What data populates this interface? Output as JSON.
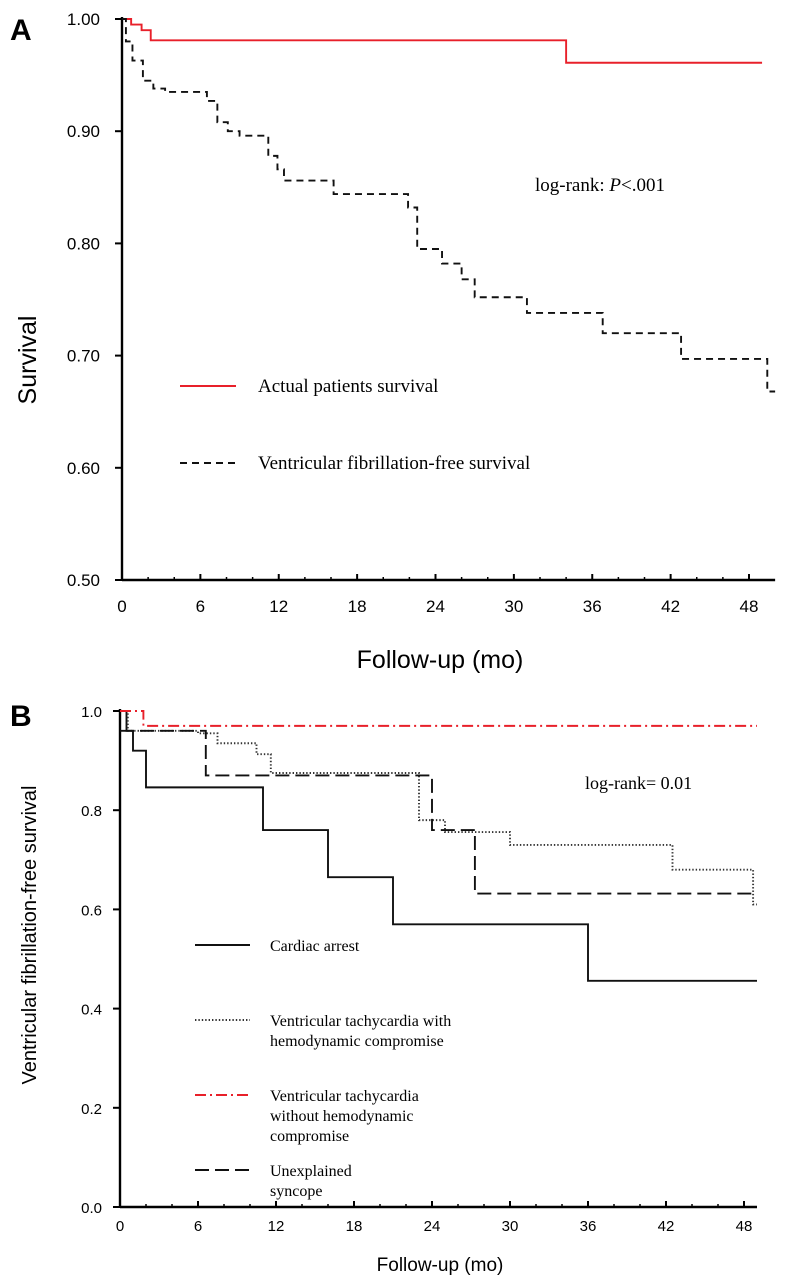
{
  "chart_data": [
    {
      "panel_label": "A",
      "type": "line",
      "step": true,
      "xlabel": "Follow-up (mo)",
      "ylabel": "Survival",
      "xlim": [
        0,
        50
      ],
      "ylim": [
        0.5,
        1.0
      ],
      "x_ticks": [
        0,
        6,
        12,
        18,
        24,
        30,
        36,
        42,
        48
      ],
      "y_ticks": [
        0.5,
        0.6,
        0.7,
        0.8,
        0.9,
        1.0
      ],
      "y_tick_labels": [
        "0.50",
        "0.60",
        "0.70",
        "0.80",
        "0.90",
        "1.00"
      ],
      "grid": false,
      "legend_position": "bottom-left",
      "annotation": {
        "text": "log-rank: ",
        "italic": "P",
        "rest": "<.001"
      },
      "series": [
        {
          "name": "Actual patients survival",
          "color": "#e8202a",
          "style": "solid",
          "x": [
            0,
            0.7,
            1.5,
            2.2,
            34,
            49
          ],
          "y": [
            1.0,
            0.995,
            0.99,
            0.981,
            0.961,
            0.961
          ]
        },
        {
          "name": "Ventricular fibrillation-free survival",
          "color": "#111111",
          "style": "dashed",
          "x": [
            0,
            0.3,
            0.8,
            1.6,
            2.4,
            3.3,
            6.5,
            7.3,
            8.1,
            9.0,
            11.2,
            11.9,
            12.4,
            16.2,
            21.9,
            22.6,
            24.5,
            26.0,
            27.0,
            31.0,
            36.8,
            42.8,
            49.4,
            50.0
          ],
          "y": [
            1.0,
            0.98,
            0.963,
            0.945,
            0.938,
            0.935,
            0.927,
            0.908,
            0.9,
            0.896,
            0.878,
            0.866,
            0.856,
            0.844,
            0.832,
            0.795,
            0.782,
            0.768,
            0.752,
            0.738,
            0.72,
            0.697,
            0.668,
            0.668
          ]
        }
      ]
    },
    {
      "panel_label": "B",
      "type": "line",
      "step": true,
      "xlabel": "Follow-up (mo)",
      "ylabel": "Ventricular fibrillation-free survival",
      "xlim": [
        0,
        49
      ],
      "ylim": [
        0.0,
        1.0
      ],
      "x_ticks": [
        0,
        6,
        12,
        18,
        24,
        30,
        36,
        42,
        48
      ],
      "y_ticks": [
        0.0,
        0.2,
        0.4,
        0.6,
        0.8,
        1.0
      ],
      "y_tick_labels": [
        "0.0",
        "0.2",
        "0.4",
        "0.6",
        "0.8",
        "1.0"
      ],
      "grid": false,
      "legend_position": "bottom-left",
      "annotation": {
        "text": "log-rank= 0.01",
        "italic": "",
        "rest": ""
      },
      "series": [
        {
          "name": "Cardiac arrest",
          "color": "#111111",
          "style": "solid",
          "x": [
            0,
            0.5,
            1.0,
            2.0,
            11.0,
            16.0,
            21.0,
            36.0,
            49.0
          ],
          "y": [
            1.0,
            0.96,
            0.92,
            0.846,
            0.76,
            0.665,
            0.57,
            0.456,
            0.456
          ]
        },
        {
          "name": "Ventricular tachycardia with\nhemodynamic compromise",
          "color": "#333333",
          "style": "dotted",
          "x": [
            0,
            0.6,
            1.2,
            6.0,
            7.5,
            10.5,
            11.6,
            23.0,
            25.0,
            30.0,
            42.5,
            48.7,
            49.0
          ],
          "y": [
            1.0,
            0.96,
            0.96,
            0.955,
            0.935,
            0.913,
            0.875,
            0.78,
            0.756,
            0.73,
            0.68,
            0.61,
            0.61
          ]
        },
        {
          "name": "Ventricular tachycardia\nwithout hemodynamic\ncompromise",
          "color": "#e8202a",
          "style": "dashdot",
          "x": [
            0,
            1.8,
            49.0
          ],
          "y": [
            1.0,
            0.97,
            0.97
          ]
        },
        {
          "name": "Unexplained\nsyncope",
          "color": "#111111",
          "style": "longdash",
          "x": [
            0,
            0.8,
            6.6,
            24.0,
            27.3,
            49.0
          ],
          "y": [
            0.96,
            0.96,
            0.87,
            0.76,
            0.632,
            0.632
          ]
        }
      ]
    }
  ]
}
